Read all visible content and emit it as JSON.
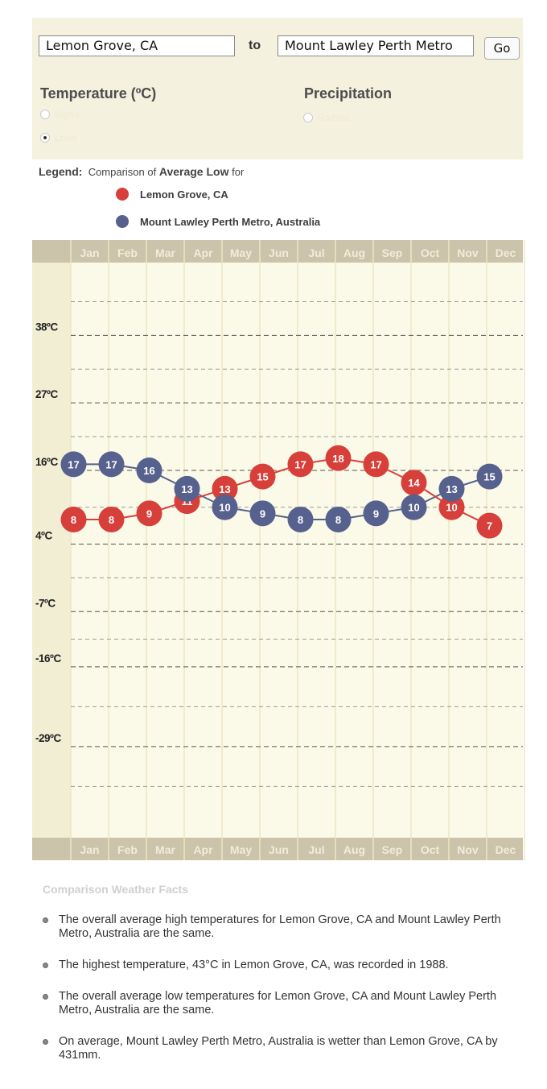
{
  "search": {
    "from_value": "Lemon Grove, CA",
    "to_label": "to",
    "to_value": "Mount Lawley Perth Metro",
    "go_label": "Go"
  },
  "sections": {
    "temperature_title": "Temperature (ºC)",
    "precipitation_title": "Precipitation",
    "temp_options": [
      "Highs",
      "Lows"
    ],
    "precip_options": [
      "Rainfall"
    ],
    "temp_selected": "Lows"
  },
  "legend": {
    "label": "Legend:",
    "caption_prefix": "Comparison of",
    "caption_bold": "Average Low",
    "caption_suffix": "for"
  },
  "chart_data": {
    "type": "line",
    "title": "Comparison of Average Low for",
    "categories": [
      "Jan",
      "Feb",
      "Mar",
      "Apr",
      "May",
      "Jun",
      "Jul",
      "Aug",
      "Sep",
      "Oct",
      "Nov",
      "Dec"
    ],
    "y_tick_labels": [
      "38ºC",
      "27ºC",
      "16ºC",
      "4ºC",
      "-7ºC",
      "-16ºC",
      "-29ºC"
    ],
    "y_unit": "ºC",
    "y_order": "descending",
    "y_ticks": [
      38,
      27,
      16,
      4,
      -7,
      -16,
      -29
    ],
    "ylim": [
      -40,
      50
    ],
    "grid": true,
    "series": [
      {
        "name": "Lemon Grove, CA",
        "color": "#d63f3a",
        "values": [
          8,
          8,
          9,
          11,
          13,
          15,
          17,
          18,
          17,
          14,
          10,
          7
        ]
      },
      {
        "name": "Mount Lawley Perth Metro, Australia",
        "color": "#56618e",
        "values": [
          17,
          17,
          16,
          13,
          10,
          9,
          8,
          8,
          9,
          10,
          13,
          15
        ]
      }
    ],
    "colors": {
      "header_band": "#cbc3aa",
      "band_text": "#f2ecd9",
      "plot_bg": "#fbfae8",
      "vgrid": "#ece6c4"
    }
  },
  "facts": {
    "title": "Comparison Weather Facts",
    "items": [
      "The overall average high temperatures for Lemon Grove, CA and Mount Lawley Perth Metro, Australia are the same.",
      "The highest temperature, 43°C in Lemon Grove, CA, was recorded in 1988.",
      "The overall average low temperatures for Lemon Grove, CA and Mount Lawley Perth Metro, Australia are the same.",
      "On average, Mount Lawley Perth Metro, Australia is wetter than Lemon Grove, CA by 431mm."
    ]
  }
}
